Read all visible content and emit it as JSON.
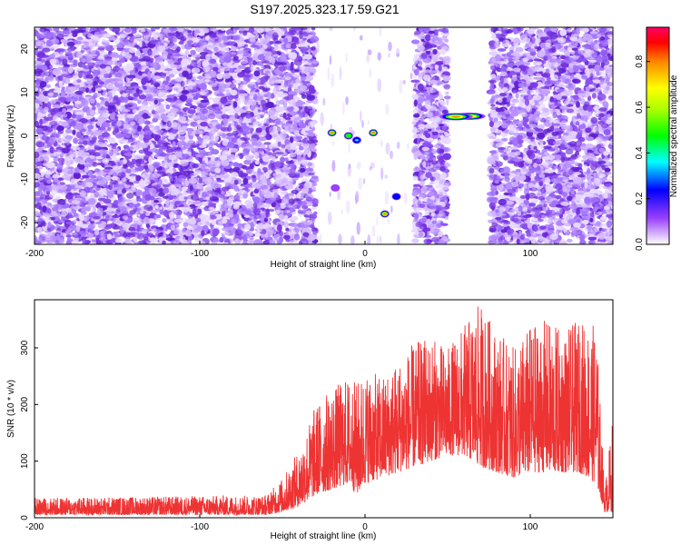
{
  "title": "S197.2025.323.17.59.G21",
  "chart_data": [
    {
      "type": "heatmap",
      "xlabel": "Height of straight line (km)",
      "ylabel": "Frequency (Hz)",
      "xlim": [
        -200,
        150
      ],
      "ylim": [
        -25,
        25
      ],
      "xticks": [
        -200,
        -100,
        0,
        100
      ],
      "yticks": [
        -20,
        -10,
        0,
        10,
        20
      ],
      "colorbar": {
        "label": "Normalized spectral amplitude",
        "range": [
          0.0,
          0.95
        ],
        "ticks": [
          "0.0",
          "0.2",
          "0.4",
          "0.6",
          "0.8"
        ]
      },
      "noise_regions": [
        {
          "from": -200,
          "to": -30
        },
        {
          "from": 30,
          "to": 50
        },
        {
          "from": 76,
          "to": 150
        }
      ],
      "features": [
        {
          "x": -20,
          "y": 0.7,
          "amp": 0.9
        },
        {
          "x": -10,
          "y": 0,
          "amp": 0.5
        },
        {
          "x": -5,
          "y": -1,
          "amp": 0.45
        },
        {
          "x": 5,
          "y": 0.7,
          "amp": 0.9
        },
        {
          "x": -18,
          "y": -12,
          "amp": 0.2
        },
        {
          "x": 12,
          "y": -18,
          "amp": 0.9
        },
        {
          "x": 19,
          "y": -14,
          "amp": 0.35
        },
        {
          "x": 63,
          "y": 4.5,
          "amp": 0.85
        },
        {
          "x": 55,
          "y": 4.4,
          "amp": 0.85
        }
      ]
    },
    {
      "type": "line",
      "xlabel": "Height of straight line (km)",
      "ylabel": "SNR (10 * v/v)",
      "xlim": [
        -200,
        150
      ],
      "ylim": [
        0,
        385
      ],
      "xticks": [
        -200,
        -100,
        0,
        100
      ],
      "yticks": [
        0,
        100,
        200,
        300
      ],
      "series": [
        {
          "name": "SNR",
          "color": "#ee3333",
          "envelope_x": [
            -200,
            -60,
            -50,
            -40,
            -30,
            -20,
            -10,
            -5,
            0,
            10,
            20,
            30,
            40,
            50,
            60,
            70,
            80,
            90,
            100,
            110,
            120,
            130,
            140,
            145,
            150
          ],
          "envelope_low": [
            5,
            5,
            10,
            20,
            40,
            50,
            60,
            40,
            60,
            70,
            80,
            90,
            100,
            110,
            110,
            90,
            80,
            70,
            80,
            80,
            80,
            80,
            60,
            10,
            10
          ],
          "envelope_high": [
            35,
            40,
            70,
            120,
            200,
            230,
            250,
            240,
            260,
            250,
            280,
            310,
            320,
            300,
            340,
            380,
            330,
            300,
            340,
            350,
            330,
            350,
            340,
            50,
            180
          ]
        }
      ]
    }
  ]
}
